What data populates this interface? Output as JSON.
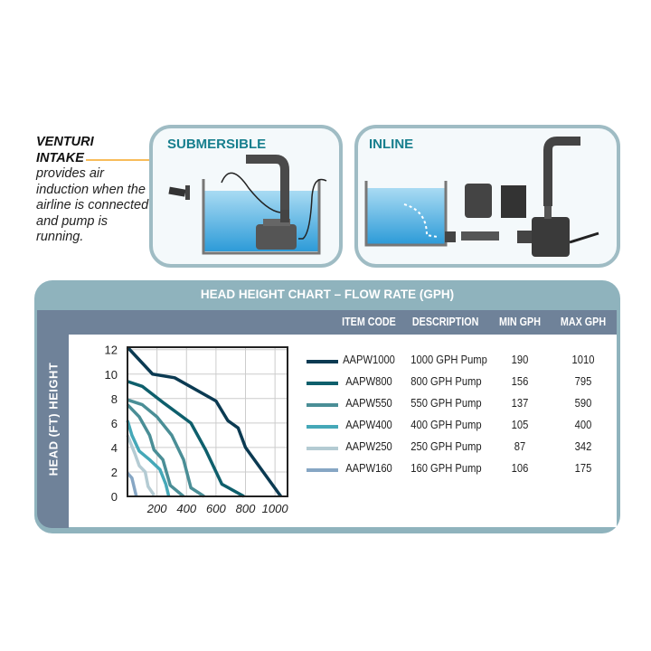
{
  "venturi": {
    "title_line1": "VENTURI",
    "title_line2": "INTAKE",
    "body": "provides air induction when the airline is connected and pump is running.",
    "accent": "#f5a623"
  },
  "panels": {
    "submersible": "SUBMERSIBLE",
    "inline": "INLINE"
  },
  "table": {
    "title": "HEAD HEIGHT CHART – FLOW RATE (GPH)",
    "y_axis_label": "HEAD (FT) HEIGHT",
    "headers": [
      "ITEM CODE",
      "DESCRIPTION",
      "MIN GPH",
      "MAX GPH"
    ],
    "rows": [
      {
        "code": "AAPW1000",
        "desc": "1000 GPH Pump",
        "min": "190",
        "max": "1010",
        "color": "#0b3a52"
      },
      {
        "code": "AAPW800",
        "desc": "800 GPH Pump",
        "min": "156",
        "max": "795",
        "color": "#0e5f6c"
      },
      {
        "code": "AAPW550",
        "desc": "550 GPH Pump",
        "min": "137",
        "max": "590",
        "color": "#4a8e96"
      },
      {
        "code": "AAPW400",
        "desc": "400 GPH Pump",
        "min": "105",
        "max": "400",
        "color": "#45a8b8"
      },
      {
        "code": "AAPW250",
        "desc": "250 GPH Pump",
        "min": "87",
        "max": "342",
        "color": "#b4cbd3"
      },
      {
        "code": "AAPW160",
        "desc": "160 GPH Pump",
        "min": "106",
        "max": "175",
        "color": "#86a6c4"
      }
    ]
  },
  "chart_data": {
    "type": "line",
    "xlim": [
      0,
      1085
    ],
    "ylim": [
      0,
      12.2
    ],
    "x_ticks": [
      "200",
      "400",
      "600",
      "800",
      "1000"
    ],
    "y_ticks": [
      "0",
      "2",
      "4",
      "6",
      "8",
      "10",
      "12"
    ],
    "grid": true,
    "series": [
      {
        "name": "AAPW1000",
        "color": "#0b3a52",
        "points": [
          [
            0,
            12.2
          ],
          [
            170,
            10
          ],
          [
            320,
            9.7
          ],
          [
            600,
            7.8
          ],
          [
            680,
            6.2
          ],
          [
            750,
            5.6
          ],
          [
            800,
            4
          ],
          [
            1040,
            0
          ]
        ]
      },
      {
        "name": "AAPW800",
        "color": "#0e5f6c",
        "points": [
          [
            0,
            9.4
          ],
          [
            100,
            9
          ],
          [
            250,
            7.6
          ],
          [
            430,
            6
          ],
          [
            530,
            3.8
          ],
          [
            640,
            1
          ],
          [
            790,
            0
          ]
        ]
      },
      {
        "name": "AAPW550",
        "color": "#4a8e96",
        "points": [
          [
            0,
            7.9
          ],
          [
            100,
            7.5
          ],
          [
            200,
            6.5
          ],
          [
            300,
            5
          ],
          [
            380,
            3
          ],
          [
            430,
            0.7
          ],
          [
            520,
            0
          ]
        ]
      },
      {
        "color": "#4a8e96",
        "points": [
          [
            0,
            7.5
          ],
          [
            80,
            6.5
          ],
          [
            150,
            5
          ],
          [
            180,
            3.8
          ],
          [
            240,
            3
          ],
          [
            290,
            0.9
          ],
          [
            380,
            0
          ]
        ]
      },
      {
        "name": "AAPW400",
        "color": "#45a8b8",
        "points": [
          [
            0,
            6.2
          ],
          [
            30,
            5
          ],
          [
            80,
            3.7
          ],
          [
            150,
            3
          ],
          [
            220,
            2.2
          ],
          [
            260,
            1
          ],
          [
            280,
            0
          ]
        ]
      },
      {
        "name": "AAPW250",
        "color": "#b4cbd3",
        "points": [
          [
            0,
            5
          ],
          [
            50,
            3.5
          ],
          [
            80,
            2.5
          ],
          [
            120,
            2
          ],
          [
            140,
            0.8
          ],
          [
            180,
            0.1
          ]
        ]
      },
      {
        "name": "AAPW160",
        "color": "#86a6c4",
        "points": [
          [
            0,
            1.9
          ],
          [
            30,
            1.5
          ],
          [
            60,
            0
          ]
        ]
      }
    ]
  }
}
